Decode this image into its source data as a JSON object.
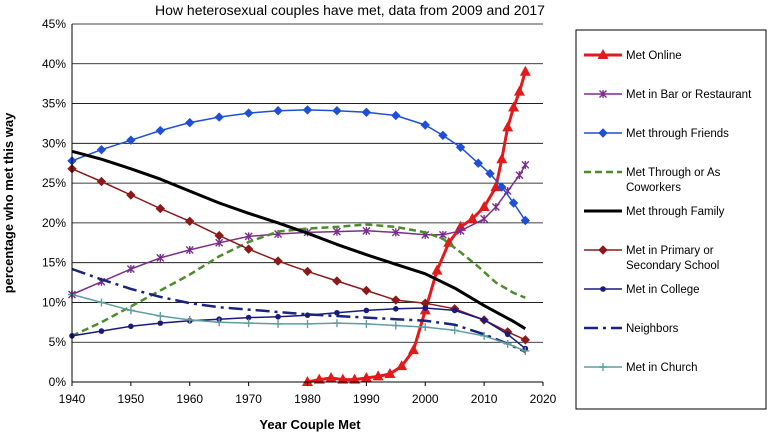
{
  "chart_data": {
    "type": "line",
    "title": "How heterosexual couples have met, data from 2009 and 2017",
    "xlabel": "Year Couple Met",
    "ylabel": "percentage who met this way",
    "xlim": [
      1940,
      2020
    ],
    "ylim": [
      0,
      45
    ],
    "x_ticks": [
      "1940",
      "1950",
      "1960",
      "1970",
      "1980",
      "1990",
      "2000",
      "2010",
      "2020"
    ],
    "y_ticks": [
      "0%",
      "5%",
      "10%",
      "15%",
      "20%",
      "25%",
      "30%",
      "35%",
      "40%",
      "45%"
    ],
    "grid": "horizontal",
    "legend_position": "right",
    "series": [
      {
        "name": "Met Online",
        "color": "#e31a1c",
        "marker": "triangle",
        "dash": "solid",
        "width": 3,
        "x": [
          1980,
          1982,
          1984,
          1986,
          1988,
          1990,
          1992,
          1994,
          1996,
          1998,
          2000,
          2002,
          2004,
          2006,
          2008,
          2010,
          2012,
          2013,
          2014,
          2015,
          2016,
          2017
        ],
        "y": [
          0,
          0.3,
          0.5,
          0.3,
          0.3,
          0.5,
          0.7,
          1.0,
          2.0,
          4.0,
          9.0,
          14.0,
          17.5,
          19.5,
          20.5,
          22.0,
          24.5,
          28.0,
          32.0,
          34.5,
          36.5,
          39.0
        ]
      },
      {
        "name": "Met in Bar or Restaurant",
        "color": "#7b2d8e",
        "marker": "asterisk",
        "dash": "solid",
        "width": 1.5,
        "x": [
          1940,
          1945,
          1950,
          1955,
          1960,
          1965,
          1970,
          1975,
          1980,
          1985,
          1990,
          1995,
          2000,
          2003,
          2006,
          2010,
          2012,
          2014,
          2016,
          2017
        ],
        "y": [
          11.0,
          12.6,
          14.2,
          15.6,
          16.6,
          17.5,
          18.3,
          18.6,
          18.8,
          18.9,
          19.0,
          18.8,
          18.5,
          18.5,
          19.0,
          20.5,
          22.0,
          24.0,
          26.0,
          27.3
        ]
      },
      {
        "name": "Met through Friends",
        "color": "#1f4fd6",
        "marker": "diamond",
        "dash": "solid",
        "width": 1.5,
        "x": [
          1940,
          1945,
          1950,
          1955,
          1960,
          1965,
          1970,
          1975,
          1980,
          1985,
          1990,
          1995,
          2000,
          2003,
          2006,
          2009,
          2011,
          2013,
          2015,
          2017
        ],
        "y": [
          27.8,
          29.2,
          30.4,
          31.6,
          32.6,
          33.3,
          33.8,
          34.1,
          34.2,
          34.1,
          33.9,
          33.5,
          32.3,
          31.0,
          29.5,
          27.5,
          26.2,
          24.5,
          22.5,
          20.3
        ]
      },
      {
        "name": "Met Through or As Coworkers",
        "color": "#4c8c2b",
        "marker": "none",
        "dash": "7,4",
        "width": 2.5,
        "x": [
          1940,
          1945,
          1950,
          1955,
          1960,
          1965,
          1970,
          1975,
          1980,
          1985,
          1990,
          1995,
          2000,
          2003,
          2006,
          2009,
          2012,
          2015,
          2017
        ],
        "y": [
          5.8,
          7.5,
          9.5,
          11.5,
          13.5,
          15.8,
          17.6,
          18.9,
          19.3,
          19.5,
          19.8,
          19.5,
          18.8,
          18.0,
          16.3,
          14.5,
          12.5,
          11.2,
          10.6
        ]
      },
      {
        "name": "Met through Family",
        "color": "#000000",
        "marker": "none",
        "dash": "solid",
        "width": 3,
        "x": [
          1940,
          1945,
          1950,
          1955,
          1960,
          1965,
          1970,
          1975,
          1980,
          1985,
          1990,
          1995,
          2000,
          2005,
          2010,
          2015,
          2017
        ],
        "y": [
          29.0,
          28.0,
          26.8,
          25.5,
          24.0,
          22.5,
          21.2,
          20.0,
          18.7,
          17.3,
          16.0,
          14.8,
          13.6,
          11.8,
          9.6,
          7.6,
          6.7
        ]
      },
      {
        "name": "Met in Primary or Secondary School",
        "color": "#8b1a1a",
        "marker": "diamond",
        "dash": "solid",
        "width": 1.5,
        "x": [
          1940,
          1945,
          1950,
          1955,
          1960,
          1965,
          1970,
          1975,
          1980,
          1985,
          1990,
          1995,
          2000,
          2005,
          2010,
          2014,
          2017
        ],
        "y": [
          26.8,
          25.2,
          23.5,
          21.8,
          20.2,
          18.4,
          16.7,
          15.2,
          13.9,
          12.7,
          11.5,
          10.3,
          9.9,
          9.2,
          7.8,
          6.3,
          5.3
        ]
      },
      {
        "name": "Met in College",
        "color": "#1a1a7a",
        "marker": "dot",
        "dash": "solid",
        "width": 1.5,
        "x": [
          1940,
          1945,
          1950,
          1955,
          1960,
          1965,
          1970,
          1975,
          1980,
          1985,
          1990,
          1995,
          2000,
          2005,
          2010,
          2014,
          2017
        ],
        "y": [
          5.8,
          6.4,
          7.0,
          7.4,
          7.7,
          7.9,
          8.1,
          8.2,
          8.4,
          8.7,
          9.0,
          9.2,
          9.3,
          9.0,
          7.8,
          6.0,
          4.2
        ]
      },
      {
        "name": "Neighbors",
        "color": "#1a237e",
        "marker": "none",
        "dash": "14,5,3,5",
        "width": 2.5,
        "x": [
          1940,
          1945,
          1950,
          1955,
          1960,
          1965,
          1970,
          1975,
          1980,
          1985,
          1990,
          1995,
          2000,
          2005,
          2010,
          2014,
          2017
        ],
        "y": [
          14.2,
          12.9,
          11.7,
          10.7,
          9.9,
          9.4,
          9.1,
          8.8,
          8.5,
          8.3,
          8.1,
          7.9,
          7.7,
          7.2,
          6.0,
          4.8,
          3.8
        ]
      },
      {
        "name": "Met in Church",
        "color": "#5f9ea0",
        "marker": "plus",
        "dash": "solid",
        "width": 1.5,
        "x": [
          1940,
          1945,
          1950,
          1955,
          1960,
          1965,
          1970,
          1975,
          1980,
          1985,
          1990,
          1995,
          2000,
          2005,
          2010,
          2014,
          2017
        ],
        "y": [
          11.0,
          10.0,
          9.0,
          8.3,
          7.8,
          7.5,
          7.4,
          7.3,
          7.3,
          7.4,
          7.3,
          7.1,
          6.9,
          6.5,
          5.8,
          4.8,
          3.9
        ]
      }
    ]
  }
}
